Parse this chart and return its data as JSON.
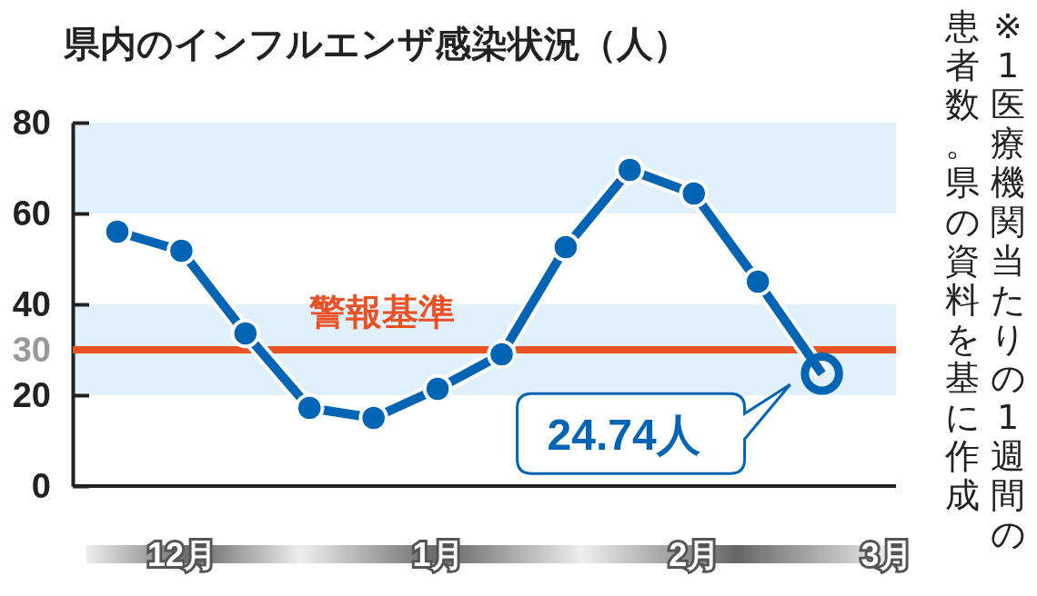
{
  "chart_data": {
    "type": "line",
    "title": "県内のインフルエンザ感染状況（人）",
    "categories": [
      null,
      "12月",
      null,
      null,
      null,
      "1月",
      null,
      null,
      null,
      "2月",
      null,
      null,
      "3月"
    ],
    "series": [
      {
        "color": "#0064b4",
        "values": [
          56,
          51.8,
          33.6,
          17.2,
          15,
          21.4,
          29,
          52.6,
          69.6,
          64.4,
          45,
          24.74,
          null
        ]
      }
    ],
    "ylim": [
      0,
      80
    ],
    "yticks": [
      0,
      20,
      30,
      40,
      60,
      80
    ],
    "marker": "circle",
    "grid": false,
    "bands": [
      {
        "axis": "y",
        "from": 20,
        "to": 40,
        "color": "#e0f1fb"
      },
      {
        "axis": "y",
        "from": 60,
        "to": 80,
        "color": "#e0f1fb"
      }
    ],
    "ref_lines": [
      {
        "axis": "y",
        "value": 30,
        "label": "警報基準",
        "color": "#ea5125"
      }
    ],
    "annotations": [
      "24.74人",
      "※1医療機関当たりの1週間の",
      "患者数。県の資料を基に作成"
    ]
  }
}
